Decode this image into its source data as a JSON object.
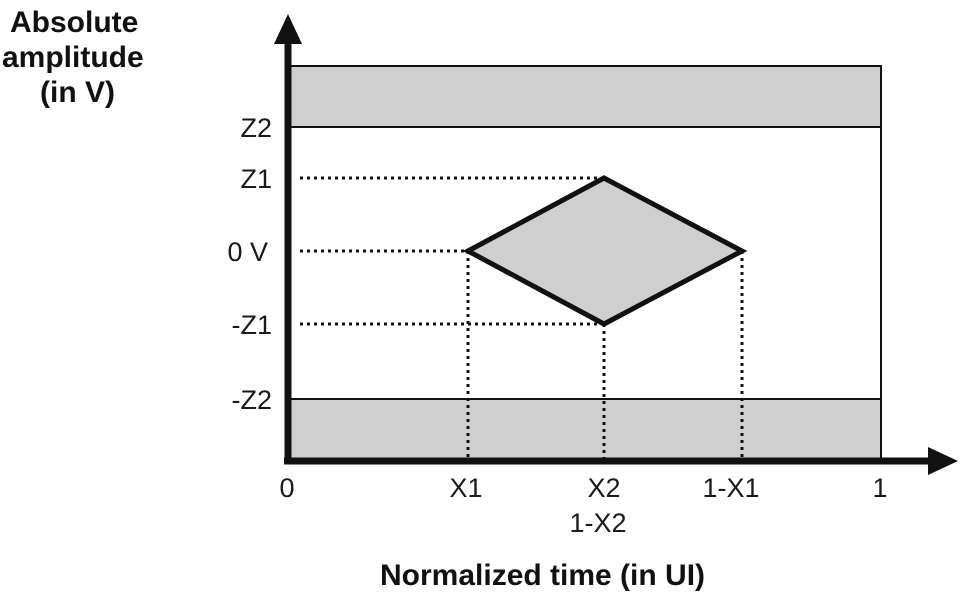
{
  "y_axis": {
    "title_lines": [
      "Absolute",
      "amplitude",
      "(in V)"
    ],
    "ticks": {
      "z2": "Z2",
      "z1": "Z1",
      "zero": "0 V",
      "neg_z1": "-Z1",
      "neg_z2": "-Z2"
    }
  },
  "x_axis": {
    "title": "Normalized time (in UI)",
    "ticks": {
      "zero": "0",
      "x1": "X1",
      "x2": "X2",
      "x2_alt": "1-X2",
      "one_minus_x1": "1-X1",
      "one": "1"
    }
  },
  "colors": {
    "forbidden_region": "#cfcfcf",
    "eye_mask": "#cfcfcf",
    "axis": "#111111"
  }
}
